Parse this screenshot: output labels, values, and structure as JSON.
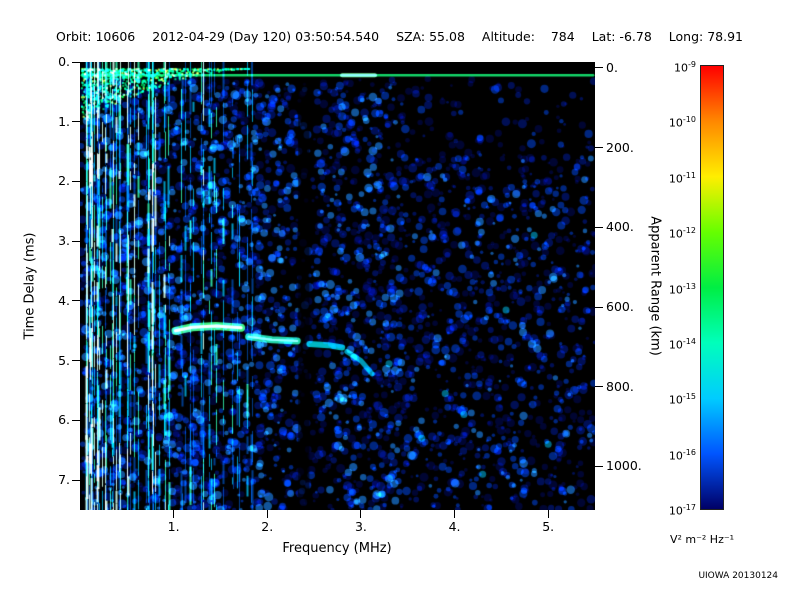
{
  "header": {
    "items": [
      "Orbit: 10606",
      "2012-04-29 (Day 120) 03:50:54.540",
      "SZA: 55.08",
      "Altitude:    784",
      "Lat: -6.78",
      "Long: 78.91"
    ]
  },
  "footer": {
    "credit": "UIOWA 20130124"
  },
  "chart_data": {
    "type": "heatmap",
    "description": "Radar sounder ionogram: received spectral density vs sounding frequency and echo time delay",
    "xlabel": "Frequency (MHz)",
    "ylabel_left": "Time Delay (ms)",
    "ylabel_right": "Apparent Range (km)",
    "xlim": [
      0.0,
      5.5
    ],
    "ylim": [
      0.0,
      7.5
    ],
    "x_ticks": [
      1,
      2,
      3,
      4,
      5
    ],
    "x_tick_labels": [
      "1.",
      "2.",
      "3.",
      "4.",
      "5."
    ],
    "y_ticks_left": [
      0,
      1,
      2,
      3,
      4,
      5,
      6,
      7
    ],
    "y_tick_labels_left": [
      "0.",
      "1.",
      "2.",
      "3.",
      "4.",
      "5.",
      "6.",
      "7."
    ],
    "y_ticks_right_km": [
      0,
      200,
      400,
      600,
      800,
      1000
    ],
    "y_tick_labels_right": [
      "0.",
      "200.",
      "400.",
      "600.",
      "800.",
      "1000."
    ],
    "range_km_per_ms": 149.9,
    "range_delay_offset_ms": 0.1,
    "grid": false,
    "plot_background": "#000000",
    "colorbar": {
      "units": "V² m⁻² Hz⁻¹",
      "scale_max": 1e-09,
      "scale_min": 1e-17,
      "tick_exponents": [
        -9,
        -10,
        -11,
        -12,
        -13,
        -14,
        -15,
        -16,
        -17
      ],
      "colors_top_to_bottom": [
        "#ff0000",
        "#ff8800",
        "#ffee00",
        "#66ff00",
        "#00ee44",
        "#00ffbb",
        "#00ccff",
        "#0055ff",
        "#000066"
      ]
    },
    "features": {
      "plasma_oscillation_stripes_mhz_range": [
        0.1,
        1.85
      ],
      "leading_edge_band_time_delay_ms": 0.22,
      "dark_gap_frequency_mhz": 2.4,
      "background_noise_level": "1e-16 to 1e-15",
      "echo_trace": {
        "segments": [
          {
            "pts": [
              [
                1.02,
                4.5
              ],
              [
                1.2,
                4.44
              ],
              [
                1.45,
                4.42
              ],
              [
                1.72,
                4.45
              ]
            ],
            "color": "rgba(70,255,140,0.95)",
            "core": "rgba(200,255,200,0.9)",
            "width": 8
          },
          {
            "pts": [
              [
                1.8,
                4.6
              ],
              [
                2.05,
                4.65
              ],
              [
                2.32,
                4.67
              ]
            ],
            "color": "rgba(40,240,190,0.9)",
            "core": "rgba(160,255,220,0.7)",
            "width": 7
          },
          {
            "pts": [
              [
                2.45,
                4.72
              ],
              [
                2.65,
                4.74
              ],
              [
                2.8,
                4.78
              ]
            ],
            "color": "rgba(0,215,230,0.85)",
            "width": 6
          },
          {
            "pts": [
              [
                2.85,
                4.85
              ],
              [
                3.0,
                5.0
              ],
              [
                3.12,
                5.22
              ]
            ],
            "color": "rgba(0,190,225,0.8)",
            "width": 5
          }
        ]
      }
    },
    "render": {
      "seed": 20130124,
      "noise_regions": [
        {
          "f": [
            0.0,
            2.33
          ],
          "t": [
            0.3,
            7.5
          ],
          "density": 2.2,
          "brightness": 0.85
        },
        {
          "f": [
            2.33,
            2.52
          ],
          "t": [
            0.3,
            7.5
          ],
          "density": 0.9,
          "brightness": 0.55
        },
        {
          "f": [
            2.52,
            3.45
          ],
          "t": [
            0.3,
            7.5
          ],
          "density": 2.0,
          "brightness": 0.8
        },
        {
          "f": [
            3.45,
            5.5
          ],
          "t": [
            0.28,
            1.6
          ],
          "density": 0.55,
          "brightness": 0.55
        },
        {
          "f": [
            3.45,
            5.5
          ],
          "t": [
            1.6,
            7.5
          ],
          "density": 1.45,
          "brightness": 0.72
        }
      ],
      "dark_column": {
        "f": [
          2.33,
          2.45
        ]
      },
      "stripes": {
        "count": 54,
        "f_range": [
          0.05,
          1.85
        ],
        "low_bias": 1.5,
        "strong": [
          [
            0.18,
            1.0
          ],
          [
            0.28,
            0.92
          ],
          [
            0.38,
            1.0
          ],
          [
            0.5,
            0.95
          ],
          [
            0.62,
            0.85
          ],
          [
            0.78,
            0.8
          ],
          [
            0.95,
            0.75
          ],
          [
            1.08,
            0.68
          ],
          [
            1.31,
            0.85
          ],
          [
            1.45,
            0.6
          ],
          [
            1.62,
            0.55
          ],
          [
            1.78,
            0.5
          ]
        ]
      },
      "wedge": {
        "f_range": [
          0.02,
          1.8
        ],
        "t_top": 0.1,
        "max_thickness_ms": 0.85
      },
      "hline": {
        "t": 0.22,
        "f_range": [
          0.02,
          5.48
        ],
        "bright_f": [
          2.8,
          3.15
        ]
      },
      "speckles": [
        [
          3.3,
          5.05
        ],
        [
          3.9,
          5.55
        ],
        [
          4.1,
          5.9
        ],
        [
          4.55,
          4.15
        ],
        [
          5.0,
          6.4
        ],
        [
          4.3,
          6.9
        ],
        [
          3.65,
          6.3
        ],
        [
          4.85,
          2.9
        ]
      ]
    }
  }
}
